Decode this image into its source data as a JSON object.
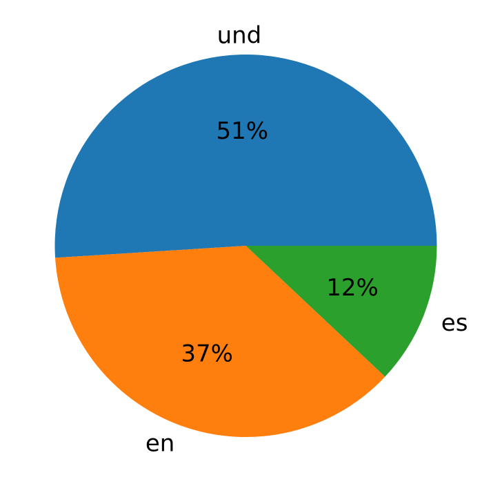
{
  "chart_data": {
    "type": "pie",
    "title": "",
    "categories": [
      "und",
      "en",
      "es"
    ],
    "values": [
      51,
      37,
      12
    ],
    "value_labels": [
      "51%",
      "37%",
      "12%"
    ],
    "colors": [
      "#1f77b4",
      "#ff7f0e",
      "#2ca02c"
    ],
    "start_angle_deg": 0,
    "direction": "counterclockwise",
    "legend": "none"
  }
}
